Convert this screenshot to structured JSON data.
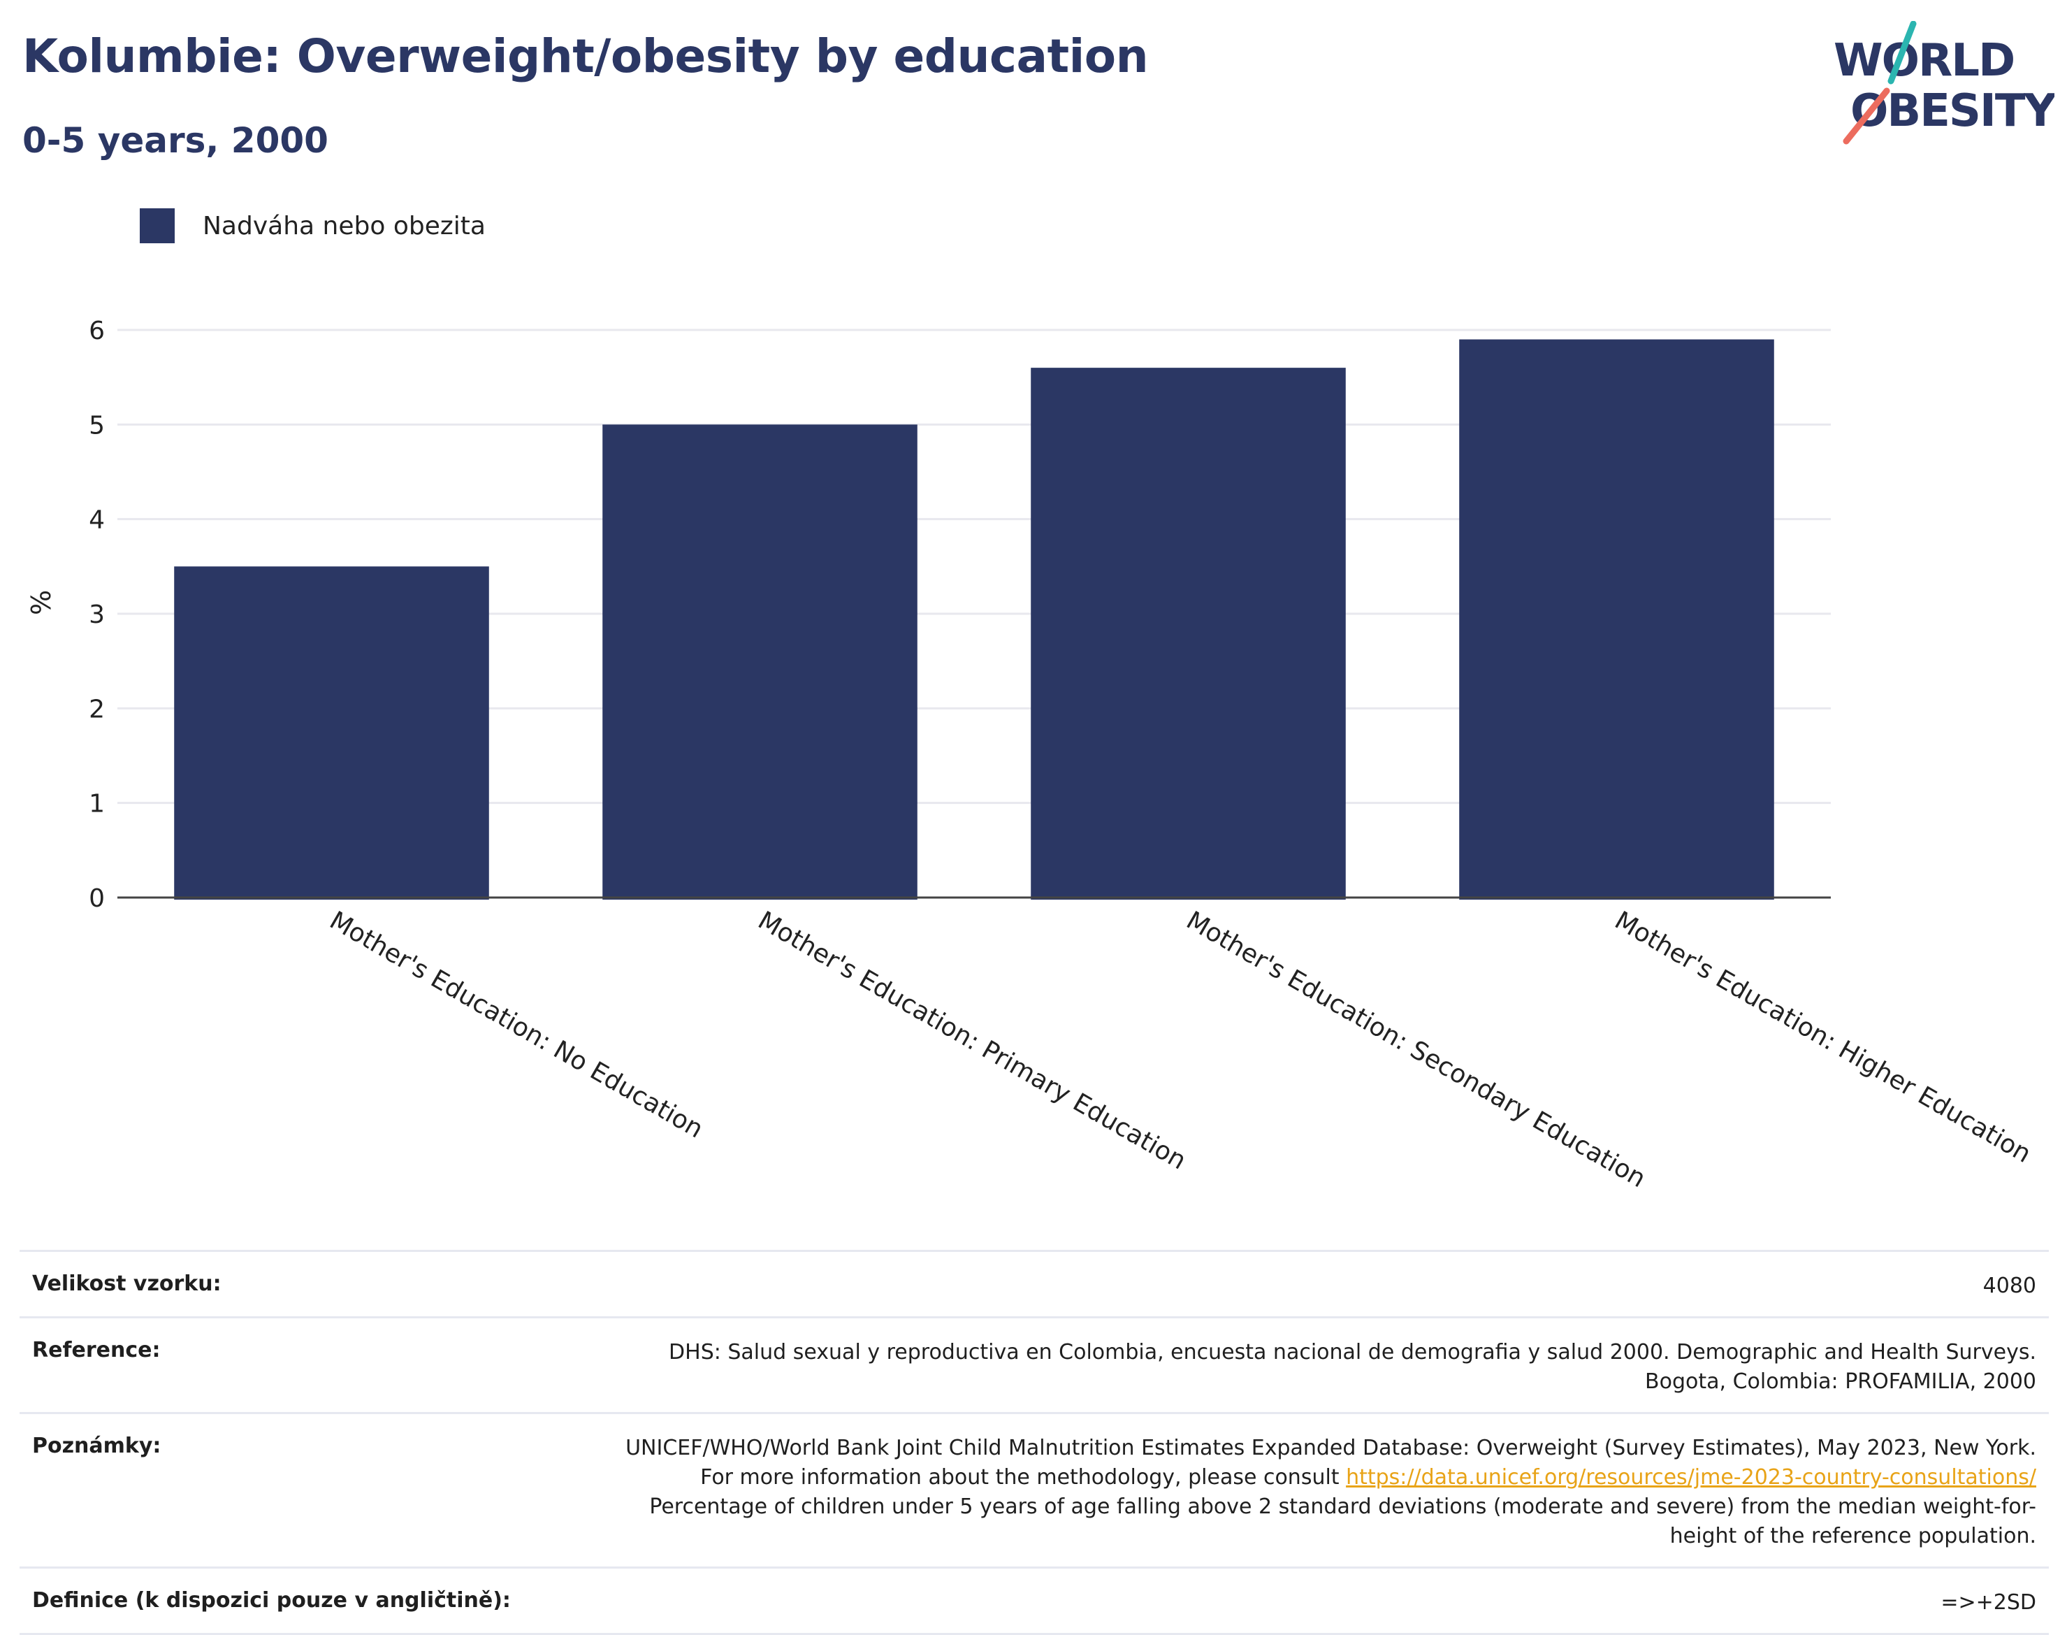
{
  "header": {
    "title": "Kolumbie: Overweight/obesity by education",
    "subtitle": "0-5 years, 2000"
  },
  "logo": {
    "line1": "WORLD",
    "line2": "OBESITY"
  },
  "legend": {
    "label": "Nadváha nebo obezita"
  },
  "colors": {
    "bar": "#2b3764",
    "title": "#2b3764",
    "grid": "#e8e8ee",
    "link": "#e8a317",
    "logo_teal": "#2bb5b0",
    "logo_coral": "#ec6c5e"
  },
  "chart_data": {
    "type": "bar",
    "categories": [
      "Mother's Education: No Education",
      "Mother's Education: Primary Education",
      "Mother's Education: Secondary Education",
      "Mother's Education: Higher Education"
    ],
    "series": [
      {
        "name": "Nadváha nebo obezita",
        "values": [
          3.5,
          5.0,
          5.6,
          5.9
        ]
      }
    ],
    "ylabel": "%",
    "ylim": [
      0,
      6
    ],
    "yticks": [
      0,
      1,
      2,
      3,
      4,
      5,
      6
    ],
    "grid": true,
    "legend_position": "top-left"
  },
  "info": {
    "sample_size": {
      "label": "Velikost vzorku:",
      "value": "4080"
    },
    "reference": {
      "label": "Reference:",
      "value": "DHS: Salud sexual y reproductiva en Colombia, encuesta nacional de demografia y salud 2000. Demographic and Health Surveys. Bogota, Colombia: PROFAMILIA, 2000"
    },
    "notes": {
      "label": "Poznámky:",
      "text_before": "UNICEF/WHO/World Bank Joint Child Malnutrition Estimates Expanded Database: Overweight (Survey Estimates), May 2023, New York. For more information about the methodology, please consult ",
      "link": "https://data.unicef.org/resources/jme-2023-country-consultations/",
      "text_after": " Percentage of children under 5 years of age falling above 2 standard deviations (moderate and severe) from the median weight-for-height of the reference population."
    },
    "definition": {
      "label": "Definice (k dispozici pouze v angličtině):",
      "value": "=>+2SD"
    }
  }
}
